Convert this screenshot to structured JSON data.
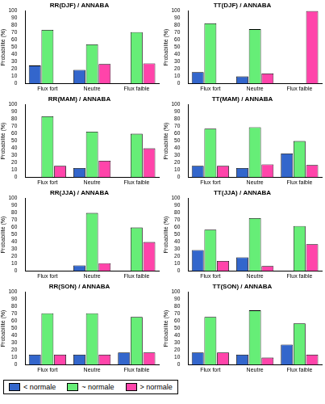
{
  "chart_data": [
    {
      "type": "bar",
      "title": "RR(DJF) / ANNABA",
      "y_label": "Probabilité (%)",
      "categories": [
        "Flux fort",
        "Neutre",
        "Flux faible"
      ],
      "series": [
        {
          "name": "< normale",
          "color": "#3366cc",
          "values": [
            25,
            19,
            0
          ]
        },
        {
          "name": "~ normale",
          "color": "#66ee77",
          "values": [
            74,
            54,
            71
          ]
        },
        {
          "name": "> normale",
          "color": "#ff44aa",
          "values": [
            0,
            27,
            28
          ]
        }
      ],
      "ylim": [
        0,
        100
      ],
      "yticks": [
        0,
        10,
        20,
        30,
        40,
        50,
        60,
        70,
        80,
        90,
        100
      ],
      "grid": false,
      "legend": "bottom"
    },
    {
      "type": "bar",
      "title": "TT(DJF) / ANNABA",
      "y_label": "Probabilité (%)",
      "categories": [
        "Flux fort",
        "Neutre",
        "Flux faible"
      ],
      "series": [
        {
          "name": "< normale",
          "color": "#3366cc",
          "values": [
            16,
            10,
            0
          ]
        },
        {
          "name": "~ normale",
          "color": "#66ee77",
          "values": [
            83,
            75,
            0
          ]
        },
        {
          "name": "> normale",
          "color": "#ff44aa",
          "values": [
            0,
            14,
            100
          ]
        }
      ],
      "ylim": [
        0,
        100
      ],
      "yticks": [
        0,
        10,
        20,
        30,
        40,
        50,
        60,
        70,
        80,
        90,
        100
      ],
      "grid": false
    },
    {
      "type": "bar",
      "title": "RR(MAM) / ANNABA",
      "y_label": "Probabilité (%)",
      "categories": [
        "Flux fort",
        "Neutre",
        "Flux faible"
      ],
      "series": [
        {
          "name": "< normale",
          "color": "#3366cc",
          "values": [
            0,
            13,
            0
          ]
        },
        {
          "name": "~ normale",
          "color": "#66ee77",
          "values": [
            84,
            63,
            60
          ]
        },
        {
          "name": "> normale",
          "color": "#ff44aa",
          "values": [
            16,
            23,
            40
          ]
        }
      ],
      "ylim": [
        0,
        100
      ],
      "yticks": [
        0,
        10,
        20,
        30,
        40,
        50,
        60,
        70,
        80,
        90,
        100
      ],
      "grid": false
    },
    {
      "type": "bar",
      "title": "TT(MAM) / ANNABA",
      "y_label": "Probabilité (%)",
      "categories": [
        "Flux fort",
        "Neutre",
        "Flux faible"
      ],
      "series": [
        {
          "name": "< normale",
          "color": "#3366cc",
          "values": [
            16,
            13,
            33
          ]
        },
        {
          "name": "~ normale",
          "color": "#66ee77",
          "values": [
            67,
            69,
            50
          ]
        },
        {
          "name": "> normale",
          "color": "#ff44aa",
          "values": [
            16,
            18,
            17
          ]
        }
      ],
      "ylim": [
        0,
        100
      ],
      "yticks": [
        0,
        10,
        20,
        30,
        40,
        50,
        60,
        70,
        80,
        90,
        100
      ],
      "grid": false
    },
    {
      "type": "bar",
      "title": "RR(JJA) / ANNABA",
      "y_label": "Probabilité (%)",
      "categories": [
        "Flux fort",
        "Neutre",
        "Flux faible"
      ],
      "series": [
        {
          "name": "< normale",
          "color": "#3366cc",
          "values": [
            0,
            8,
            0
          ]
        },
        {
          "name": "~ normale",
          "color": "#66ee77",
          "values": [
            0,
            80,
            60
          ]
        },
        {
          "name": "> normale",
          "color": "#ff44aa",
          "values": [
            0,
            11,
            40
          ]
        }
      ],
      "ylim": [
        0,
        100
      ],
      "yticks": [
        0,
        10,
        20,
        30,
        40,
        50,
        60,
        70,
        80,
        90,
        100
      ],
      "grid": false
    },
    {
      "type": "bar",
      "title": "TT(JJA) / ANNABA",
      "y_label": "Probabilité (%)",
      "categories": [
        "Flux fort",
        "Neutre",
        "Flux faible"
      ],
      "series": [
        {
          "name": "< normale",
          "color": "#3366cc",
          "values": [
            29,
            19,
            0
          ]
        },
        {
          "name": "~ normale",
          "color": "#66ee77",
          "values": [
            57,
            73,
            62
          ]
        },
        {
          "name": "> normale",
          "color": "#ff44aa",
          "values": [
            14,
            7,
            37
          ]
        }
      ],
      "ylim": [
        0,
        100
      ],
      "yticks": [
        0,
        10,
        20,
        30,
        40,
        50,
        60,
        70,
        80,
        90,
        100
      ],
      "grid": false
    },
    {
      "type": "bar",
      "title": "RR(SON) / ANNABA",
      "y_label": "Probabilité (%)",
      "categories": [
        "Flux fort",
        "Neutre",
        "Flux faible"
      ],
      "series": [
        {
          "name": "< normale",
          "color": "#3366cc",
          "values": [
            14,
            14,
            17
          ]
        },
        {
          "name": "~ normale",
          "color": "#66ee77",
          "values": [
            71,
            71,
            66
          ]
        },
        {
          "name": "> normale",
          "color": "#ff44aa",
          "values": [
            14,
            14,
            17
          ]
        }
      ],
      "ylim": [
        0,
        100
      ],
      "yticks": [
        0,
        10,
        20,
        30,
        40,
        50,
        60,
        70,
        80,
        90,
        100
      ],
      "grid": false
    },
    {
      "type": "bar",
      "title": "TT(SON) / ANNABA",
      "y_label": "Probabilité (%)",
      "categories": [
        "Flux fort",
        "Neutre",
        "Flux faible"
      ],
      "series": [
        {
          "name": "< normale",
          "color": "#3366cc",
          "values": [
            17,
            14,
            28
          ]
        },
        {
          "name": "~ normale",
          "color": "#66ee77",
          "values": [
            66,
            75,
            57
          ]
        },
        {
          "name": "> normale",
          "color": "#ff44aa",
          "values": [
            17,
            10,
            14
          ]
        }
      ],
      "ylim": [
        0,
        100
      ],
      "yticks": [
        0,
        10,
        20,
        30,
        40,
        50,
        60,
        70,
        80,
        90,
        100
      ],
      "grid": false
    }
  ]
}
